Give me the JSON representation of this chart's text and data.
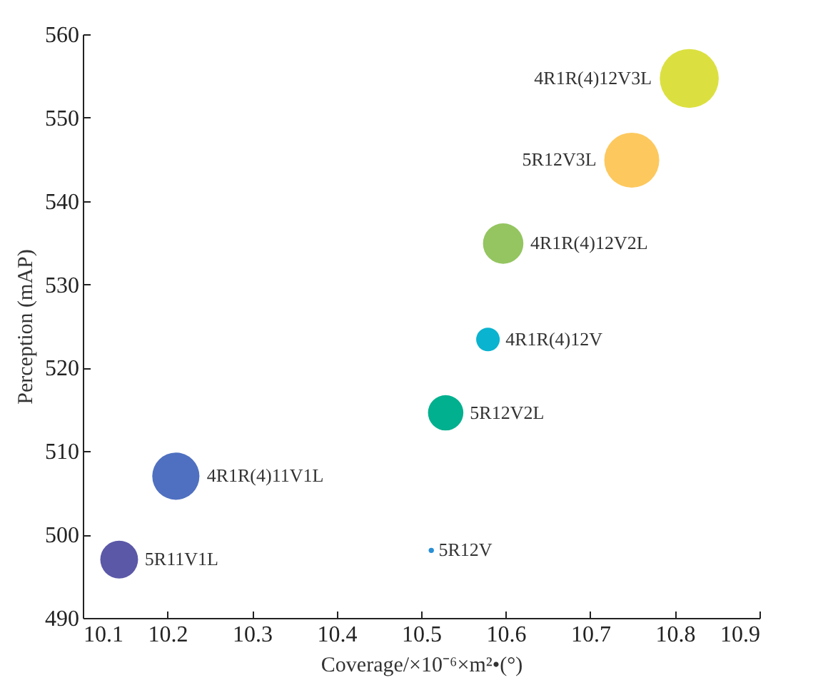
{
  "chart_data": {
    "type": "bubble",
    "xlabel": "Coverage/×10⁻⁶×m²•(°)",
    "ylabel": "Perception (mAP)",
    "xlim": [
      10.1,
      10.9
    ],
    "xticks": [
      10.1,
      10.2,
      10.3,
      10.4,
      10.5,
      10.6,
      10.7,
      10.8,
      10.9
    ],
    "ylim": [
      490,
      560
    ],
    "yticks": [
      490,
      500,
      510,
      520,
      530,
      540,
      550,
      560
    ],
    "grid": false,
    "legend": false,
    "series": [
      {
        "name": "5R11V1L",
        "color": "#5b58a8",
        "x": [
          10.143
        ],
        "values": [
          497.0
        ],
        "sizes": [
          0.41
        ]
      },
      {
        "name": "4R1R(4)11V1L",
        "color": "#4f70c0",
        "x": [
          10.21
        ],
        "values": [
          507.0
        ],
        "sizes": [
          0.64
        ]
      },
      {
        "name": "5R12V",
        "color": "#2a8fd5",
        "x": [
          10.512
        ],
        "values": [
          498.1
        ],
        "sizes": [
          0.008
        ]
      },
      {
        "name": "5R12V2L",
        "color": "#00b08e",
        "x": [
          10.529
        ],
        "values": [
          514.6
        ],
        "sizes": [
          0.36
        ]
      },
      {
        "name": "4R1R(4)12V",
        "color": "#0ab3cf",
        "x": [
          10.579
        ],
        "values": [
          523.4
        ],
        "sizes": [
          0.16
        ]
      },
      {
        "name": "4R1R(4)12V2L",
        "color": "#94c560",
        "x": [
          10.597
        ],
        "values": [
          534.9
        ],
        "sizes": [
          0.47
        ]
      },
      {
        "name": "5R12V3L",
        "color": "#fdc85e",
        "x": [
          10.749
        ],
        "values": [
          544.9
        ],
        "sizes": [
          0.87
        ]
      },
      {
        "name": "4R1R(4)12V3L",
        "color": "#dbe040",
        "x": [
          10.817
        ],
        "values": [
          554.7
        ],
        "sizes": [
          1
        ]
      }
    ]
  }
}
